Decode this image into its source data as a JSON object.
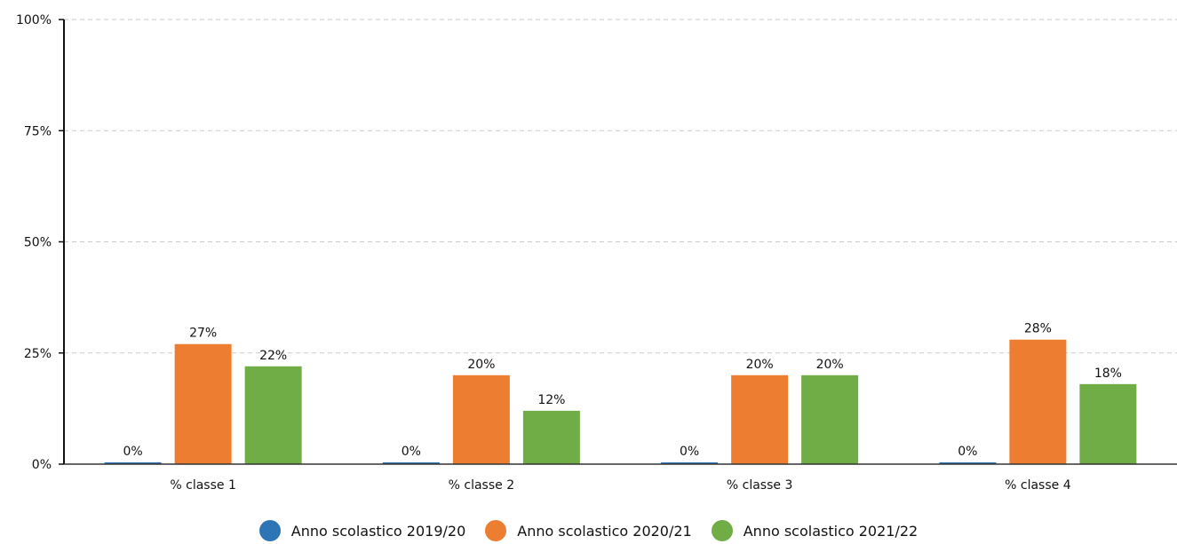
{
  "chart_data": {
    "type": "bar",
    "categories": [
      "% classe 1",
      "% classe 2",
      "% classe 3",
      "% classe 4"
    ],
    "series": [
      {
        "name": "Anno scolastico 2019/20",
        "color": "#2e75b6",
        "values": [
          0,
          0,
          0,
          0
        ]
      },
      {
        "name": "Anno scolastico 2020/21",
        "color": "#ed7d31",
        "values": [
          27,
          20,
          20,
          28
        ]
      },
      {
        "name": "Anno scolastico 2021/22",
        "color": "#70ad47",
        "values": [
          22,
          12,
          20,
          18
        ]
      }
    ],
    "value_labels": [
      [
        "0%",
        "0%",
        "0%",
        "0%"
      ],
      [
        "27%",
        "20%",
        "20%",
        "28%"
      ],
      [
        "22%",
        "12%",
        "20%",
        "18%"
      ]
    ],
    "y_ticks": [
      {
        "value": 0,
        "label": "0%"
      },
      {
        "value": 25,
        "label": "25%"
      },
      {
        "value": 50,
        "label": "50%"
      },
      {
        "value": 75,
        "label": "75%"
      },
      {
        "value": 100,
        "label": "100%"
      }
    ],
    "ylim": [
      0,
      100
    ],
    "title": "",
    "xlabel": "",
    "ylabel": "",
    "grid": true,
    "legend_position": "bottom"
  }
}
